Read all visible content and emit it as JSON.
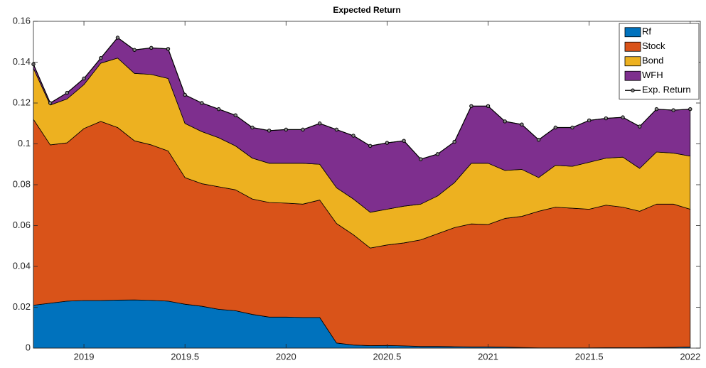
{
  "chart_data": {
    "type": "area",
    "stacked": true,
    "title": "Expected Return",
    "x": [
      2018.75,
      2018.8333,
      2018.9167,
      2019,
      2019.0833,
      2019.1667,
      2019.25,
      2019.3333,
      2019.4167,
      2019.5,
      2019.5833,
      2019.6667,
      2019.75,
      2019.8333,
      2019.9167,
      2020,
      2020.0833,
      2020.1667,
      2020.25,
      2020.3333,
      2020.4167,
      2020.5,
      2020.5833,
      2020.6667,
      2020.75,
      2020.8333,
      2020.9167,
      2021,
      2021.0833,
      2021.1667,
      2021.25,
      2021.3333,
      2021.4167,
      2021.5,
      2021.5833,
      2021.6667,
      2021.75,
      2021.8333,
      2021.9167,
      2022
    ],
    "series": [
      {
        "name": "Rf",
        "type": "area",
        "color": "#0072bd",
        "values": [
          0.021,
          0.022,
          0.023,
          0.0233,
          0.0233,
          0.0235,
          0.0236,
          0.0234,
          0.023,
          0.0215,
          0.0205,
          0.019,
          0.0183,
          0.0165,
          0.0152,
          0.0152,
          0.015,
          0.015,
          0.0025,
          0.0015,
          0.0012,
          0.0013,
          0.0011,
          0.0008,
          0.0008,
          0.0007,
          0.0006,
          0.0006,
          0.0005,
          0.0003,
          0.0001,
          0.0001,
          0.0001,
          0.0001,
          0.0002,
          0.0002,
          0.0002,
          0.0003,
          0.0004,
          0.0006
        ]
      },
      {
        "name": "Stock",
        "type": "area",
        "color": "#d95319",
        "values": [
          0.091,
          0.0775,
          0.0775,
          0.0842,
          0.0877,
          0.0845,
          0.0779,
          0.0761,
          0.0735,
          0.062,
          0.06,
          0.06,
          0.0592,
          0.0565,
          0.0561,
          0.0558,
          0.0555,
          0.0575,
          0.0585,
          0.054,
          0.0478,
          0.0492,
          0.0504,
          0.0522,
          0.0552,
          0.0583,
          0.0602,
          0.0599,
          0.063,
          0.0642,
          0.0669,
          0.0689,
          0.0684,
          0.0679,
          0.0698,
          0.0688,
          0.0668,
          0.0702,
          0.0701,
          0.0674
        ]
      },
      {
        "name": "Bond",
        "type": "area",
        "color": "#edb120",
        "values": [
          0.025,
          0.0195,
          0.0215,
          0.0215,
          0.0285,
          0.034,
          0.033,
          0.0345,
          0.0355,
          0.0265,
          0.0255,
          0.024,
          0.0215,
          0.02,
          0.0192,
          0.0195,
          0.02,
          0.0175,
          0.0175,
          0.0175,
          0.0175,
          0.0175,
          0.018,
          0.0175,
          0.0185,
          0.022,
          0.0297,
          0.03,
          0.0235,
          0.023,
          0.0165,
          0.0205,
          0.0205,
          0.023,
          0.023,
          0.0245,
          0.021,
          0.0255,
          0.025,
          0.026
        ]
      },
      {
        "name": "WFH",
        "type": "area",
        "color": "#7e2f8e",
        "values": [
          0.002,
          0.001,
          0.003,
          0.003,
          0.0025,
          0.01,
          0.0115,
          0.013,
          0.0145,
          0.014,
          0.014,
          0.014,
          0.015,
          0.015,
          0.016,
          0.0165,
          0.0165,
          0.02,
          0.0285,
          0.031,
          0.0325,
          0.0325,
          0.032,
          0.022,
          0.0205,
          0.02,
          0.028,
          0.028,
          0.024,
          0.022,
          0.0185,
          0.0185,
          0.019,
          0.0205,
          0.0195,
          0.0195,
          0.0205,
          0.021,
          0.021,
          0.023
        ]
      },
      {
        "name": "Exp. Return",
        "type": "line",
        "color": "#000000",
        "values": [
          0.139,
          0.12,
          0.125,
          0.132,
          0.142,
          0.152,
          0.146,
          0.147,
          0.1465,
          0.124,
          0.12,
          0.117,
          0.114,
          0.108,
          0.1065,
          0.107,
          0.107,
          0.11,
          0.107,
          0.104,
          0.099,
          0.1005,
          0.1015,
          0.0925,
          0.095,
          0.101,
          0.1185,
          0.1185,
          0.111,
          0.1095,
          0.102,
          0.108,
          0.108,
          0.1115,
          0.1125,
          0.113,
          0.1085,
          0.117,
          0.1165,
          0.117
        ]
      }
    ],
    "xlim": [
      2018.75,
      2022.05
    ],
    "ylim": [
      0,
      0.16
    ],
    "xticks": [
      2019,
      2019.5,
      2020,
      2020.5,
      2021,
      2021.5,
      2022
    ],
    "yticks": [
      0,
      0.02,
      0.04,
      0.06,
      0.08,
      0.1,
      0.12,
      0.14,
      0.16
    ],
    "legend": "northeast"
  }
}
